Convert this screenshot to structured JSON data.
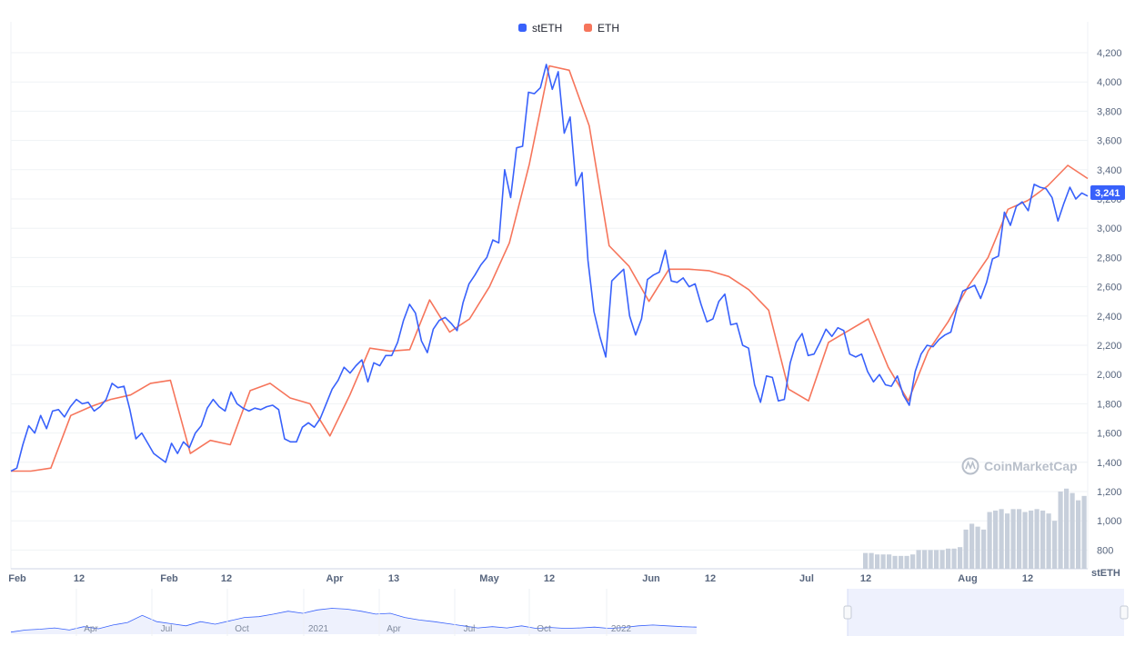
{
  "colors": {
    "steth": "#3861fb",
    "eth": "#f6755b",
    "volume": "#c7cfdb",
    "grid": "#eff2f5",
    "price_label_bg": "#3861fb",
    "navigator_fill": "#eef1fd",
    "navigator_line": "#3861fb"
  },
  "legend": [
    {
      "name": "stETH",
      "color": "#3861fb"
    },
    {
      "name": "ETH",
      "color": "#f6755b"
    }
  ],
  "watermark": "CoinMarketCap",
  "y_axis_unit": "stETH",
  "current_price_label": "3,241",
  "navigator_ticks": [
    "Apr",
    "Jul",
    "Oct",
    "2021",
    "Apr",
    "Jul",
    "Oct",
    "2022"
  ],
  "chart_data": {
    "type": "line",
    "x_tick_labels": [
      "Feb",
      "12",
      "Feb",
      "12",
      "Apr",
      "13",
      "May",
      "12",
      "Jun",
      "12",
      "Jul",
      "12",
      "Aug",
      "12"
    ],
    "ylim": [
      700,
      4300
    ],
    "y_ticks": [
      800,
      1000,
      1200,
      1400,
      1600,
      1800,
      2000,
      2200,
      2400,
      2600,
      2800,
      3000,
      3200,
      3400,
      3600,
      3800,
      4000,
      4200
    ],
    "y_tick_labels": [
      "800",
      "1,000",
      "1,200",
      "1,400",
      "1,600",
      "1,800",
      "2,000",
      "2,200",
      "2,400",
      "2,600",
      "2,800",
      "3,000",
      "3,200",
      "3,400",
      "3,600",
      "3,800",
      "4,000",
      "4,200"
    ],
    "series": [
      {
        "name": "stETH",
        "values": [
          1340,
          1360,
          1520,
          1650,
          1600,
          1720,
          1630,
          1750,
          1760,
          1710,
          1780,
          1830,
          1800,
          1810,
          1750,
          1780,
          1830,
          1940,
          1910,
          1920,
          1760,
          1560,
          1600,
          1530,
          1460,
          1430,
          1400,
          1530,
          1460,
          1540,
          1500,
          1600,
          1650,
          1770,
          1830,
          1780,
          1750,
          1880,
          1800,
          1770,
          1750,
          1770,
          1760,
          1780,
          1790,
          1760,
          1560,
          1540,
          1540,
          1640,
          1670,
          1640,
          1700,
          1800,
          1900,
          1960,
          2050,
          2010,
          2060,
          2100,
          1950,
          2080,
          2060,
          2130,
          2130,
          2220,
          2370,
          2480,
          2420,
          2230,
          2150,
          2310,
          2370,
          2390,
          2350,
          2300,
          2490,
          2620,
          2680,
          2750,
          2800,
          2920,
          2900,
          3400,
          3210,
          3550,
          3560,
          3930,
          3920,
          3960,
          4120,
          3950,
          4070,
          3650,
          3760,
          3290,
          3380,
          2780,
          2430,
          2260,
          2120,
          2640,
          2680,
          2720,
          2400,
          2270,
          2380,
          2650,
          2680,
          2700,
          2850,
          2640,
          2630,
          2660,
          2600,
          2620,
          2480,
          2360,
          2380,
          2500,
          2550,
          2340,
          2350,
          2200,
          2180,
          1930,
          1810,
          1990,
          1980,
          1820,
          1830,
          2080,
          2220,
          2280,
          2130,
          2140,
          2220,
          2310,
          2260,
          2320,
          2300,
          2140,
          2120,
          2140,
          2020,
          1950,
          2000,
          1930,
          1920,
          1990,
          1860,
          1790,
          2020,
          2140,
          2200,
          2190,
          2240,
          2270,
          2290,
          2450,
          2570,
          2590,
          2610,
          2520,
          2630,
          2790,
          2810,
          3110,
          3020,
          3150,
          3180,
          3120,
          3300,
          3280,
          3270,
          3210,
          3050,
          3170,
          3280,
          3200,
          3241,
          3220
        ]
      },
      {
        "name": "ETH",
        "values": [
          1340,
          1340,
          1360,
          1720,
          1780,
          1830,
          1860,
          1940,
          1960,
          1460,
          1550,
          1520,
          1890,
          1940,
          1840,
          1800,
          1580,
          1860,
          2180,
          2160,
          2170,
          2510,
          2290,
          2380,
          2600,
          2900,
          3440,
          4110,
          4080,
          3700,
          2880,
          2740,
          2500,
          2720,
          2720,
          2710,
          2670,
          2580,
          2440,
          1900,
          1820,
          2220,
          2300,
          2380,
          2050,
          1820,
          2160,
          2360,
          2600,
          2800,
          3130,
          3190,
          3290,
          3430,
          3340
        ]
      }
    ],
    "volume": [
      780,
      780,
      770,
      770,
      770,
      760,
      760,
      760,
      770,
      800,
      800,
      800,
      800,
      800,
      810,
      810,
      820,
      940,
      980,
      960,
      940,
      1060,
      1070,
      1080,
      1050,
      1080,
      1080,
      1060,
      1070,
      1080,
      1070,
      1050,
      1000,
      1200,
      1220,
      1190,
      1140,
      1170
    ]
  }
}
